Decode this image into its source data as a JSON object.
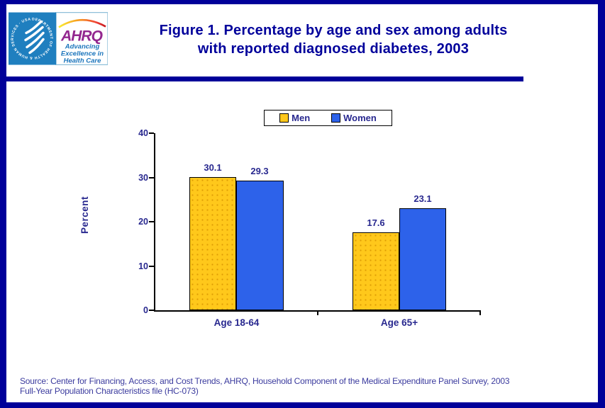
{
  "header": {
    "logo": {
      "hhs_seal_text": "DEPARTMENT OF HEALTH & HUMAN SERVICES · USA",
      "ahrq_acronym": "AHRQ",
      "tagline_line1": "Advancing",
      "tagline_line2": "Excellence in",
      "tagline_line3": "Health Care"
    },
    "title_line1": "Figure 1. Percentage by age and sex among adults",
    "title_line2": "with reported diagnosed diabetes, 2003"
  },
  "chart_data": {
    "type": "bar",
    "categories": [
      "Age 18-64",
      "Age 65+"
    ],
    "series": [
      {
        "name": "Men",
        "color": "#FFC81B",
        "values": [
          30.1,
          17.6
        ]
      },
      {
        "name": "Women",
        "color": "#2D62EA",
        "values": [
          29.3,
          23.1
        ]
      }
    ],
    "title": "Percentage by age and sex among adults with reported diagnosed diabetes, 2003",
    "xlabel": "",
    "ylabel": "Percent",
    "ylim": [
      0,
      40
    ],
    "yticks": [
      0,
      10,
      20,
      30,
      40
    ],
    "grid": false,
    "legend_position": "top-center"
  },
  "footer": {
    "source_line1": "Source: Center for Financing, Access, and Cost Trends, AHRQ, Household Component of the Medical Expenditure Panel Survey, 2003",
    "source_line2": "Full-Year Population Characteristics file (HC-073)"
  },
  "colors": {
    "page_border": "#000099",
    "title_text": "#00009B",
    "chart_text": "#28288F",
    "source_text": "#3B3B9E",
    "hhs_blue": "#1F7FBF",
    "ahrq_purple": "#93278F",
    "ahrq_tagline_blue": "#1B75BC"
  }
}
